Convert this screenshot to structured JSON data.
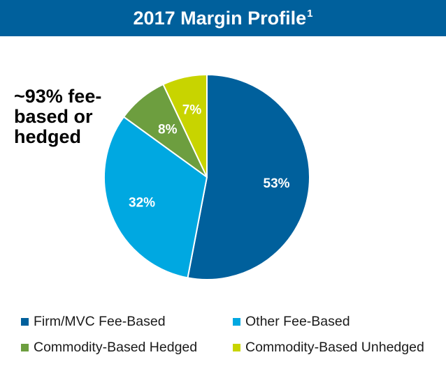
{
  "header": {
    "title": "2017 Margin Profile",
    "footnote_marker": "1",
    "background_color": "#00609c"
  },
  "callout": {
    "lines": [
      "~93% fee-",
      "based or",
      "hedged"
    ]
  },
  "chart_data": {
    "type": "pie",
    "title": "2017 Margin Profile",
    "start_angle_deg": 0,
    "direction": "clockwise",
    "legend_position": "bottom",
    "slices": [
      {
        "name": "Firm/MVC Fee-Based",
        "value": 53,
        "label": "53%",
        "color": "#00609c"
      },
      {
        "name": "Other Fee-Based",
        "value": 32,
        "label": "32%",
        "color": "#00a8e1"
      },
      {
        "name": "Commodity-Based Hedged",
        "value": 8,
        "label": "8%",
        "color": "#6d9e3f"
      },
      {
        "name": "Commodity-Based Unhedged",
        "value": 7,
        "label": "7%",
        "color": "#c8d400"
      }
    ]
  },
  "legend": {
    "items": [
      {
        "label": "Firm/MVC Fee-Based",
        "color": "#00609c"
      },
      {
        "label": "Other Fee-Based",
        "color": "#00a8e1"
      },
      {
        "label": "Commodity-Based Hedged",
        "color": "#6d9e3f"
      },
      {
        "label": "Commodity-Based Unhedged",
        "color": "#c8d400"
      }
    ]
  }
}
